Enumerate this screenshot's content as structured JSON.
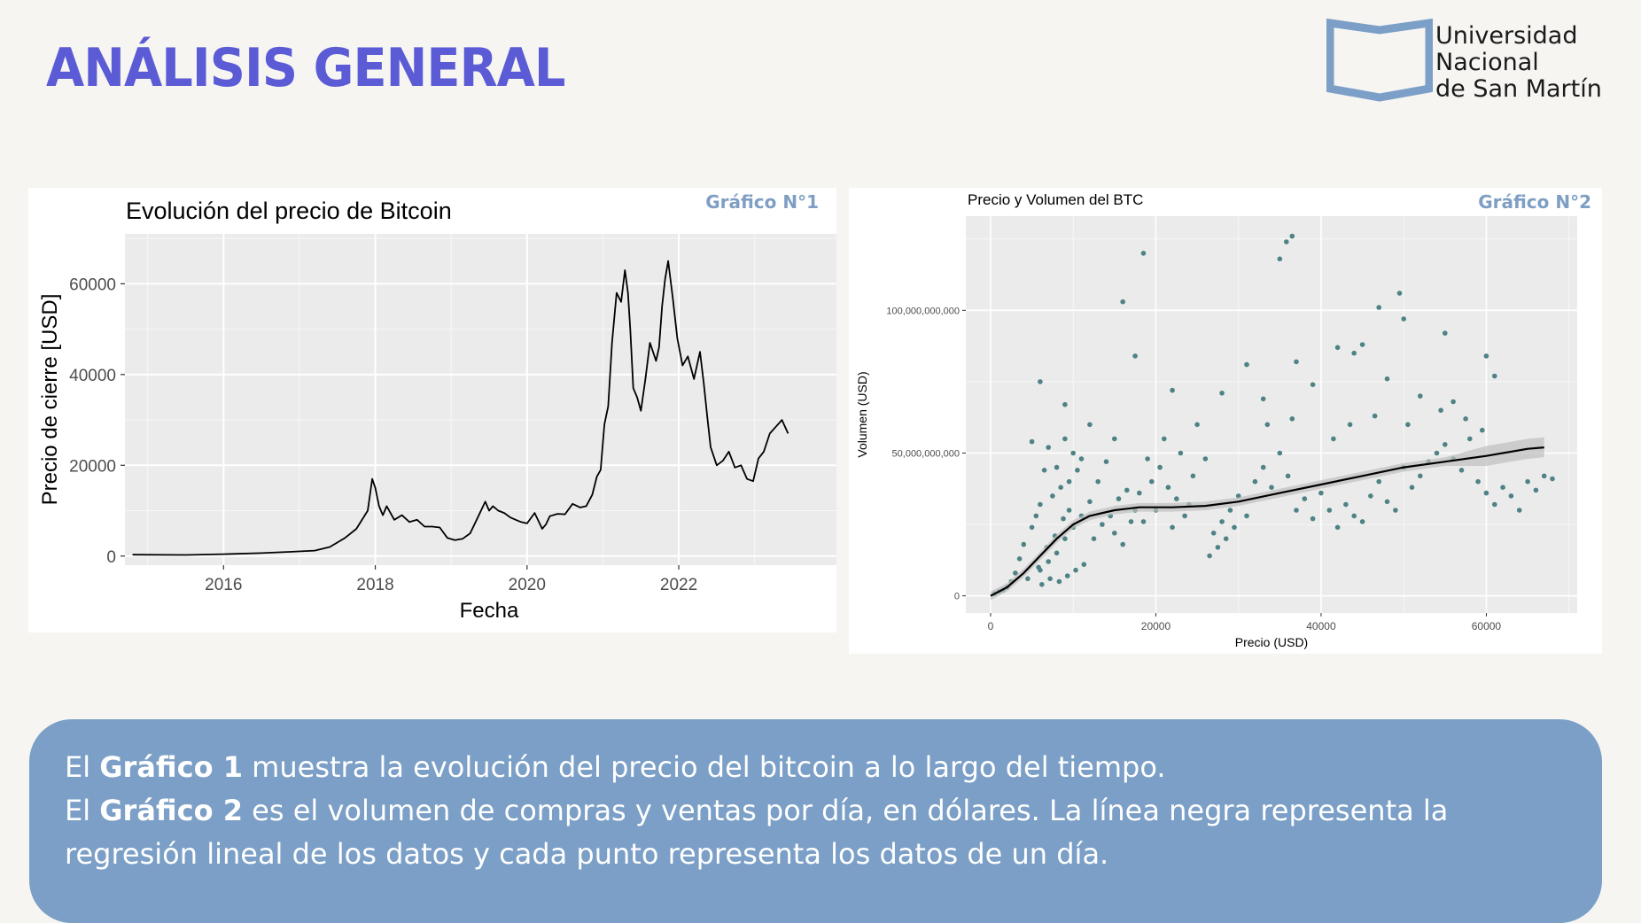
{
  "header": {
    "title": "ANÁLISIS GENERAL",
    "logo_lines": [
      "Universidad",
      "Nacional",
      "de San Martín"
    ]
  },
  "colors": {
    "title": "#5b5bd6",
    "grafico_label": "#7e9ec3",
    "scatter_points": "#4e8285",
    "textbox_bg": "#7b9fc6",
    "logo_mark": "#7b9fc6"
  },
  "chart_data": [
    {
      "id": "grafico-1",
      "type": "line",
      "badge": "Gráfico N°1",
      "title": "Evolución del precio de Bitcoin",
      "xlabel": "Fecha",
      "ylabel": "Precio de cierre [USD]",
      "xlim": [
        2014.7,
        2024.3
      ],
      "ylim": [
        -2000,
        71000
      ],
      "x_ticks": [
        2016,
        2018,
        2020,
        2022
      ],
      "y_ticks": [
        0,
        20000,
        40000,
        60000
      ],
      "grid": true,
      "x": [
        2014.8,
        2015.5,
        2016.0,
        2016.5,
        2016.9,
        2017.2,
        2017.4,
        2017.6,
        2017.75,
        2017.9,
        2017.96,
        2018.0,
        2018.05,
        2018.1,
        2018.15,
        2018.25,
        2018.35,
        2018.45,
        2018.55,
        2018.65,
        2018.75,
        2018.85,
        2018.95,
        2019.05,
        2019.15,
        2019.25,
        2019.35,
        2019.45,
        2019.5,
        2019.55,
        2019.62,
        2019.7,
        2019.78,
        2019.85,
        2019.92,
        2020.0,
        2020.1,
        2020.2,
        2020.25,
        2020.3,
        2020.4,
        2020.5,
        2020.6,
        2020.7,
        2020.78,
        2020.86,
        2020.92,
        2020.97,
        2021.02,
        2021.07,
        2021.12,
        2021.18,
        2021.24,
        2021.29,
        2021.33,
        2021.36,
        2021.4,
        2021.45,
        2021.5,
        2021.56,
        2021.62,
        2021.66,
        2021.7,
        2021.74,
        2021.78,
        2021.82,
        2021.86,
        2021.92,
        2021.98,
        2022.05,
        2022.12,
        2022.2,
        2022.28,
        2022.33,
        2022.38,
        2022.42,
        2022.5,
        2022.58,
        2022.66,
        2022.74,
        2022.82,
        2022.9,
        2022.98,
        2023.05,
        2023.12,
        2023.2,
        2023.28,
        2023.36,
        2023.44
      ],
      "y": [
        300,
        250,
        430,
        650,
        950,
        1200,
        2000,
        4000,
        6000,
        10000,
        17000,
        15000,
        11000,
        9000,
        11000,
        8000,
        9000,
        7500,
        8000,
        6500,
        6500,
        6300,
        4000,
        3500,
        3800,
        5000,
        8500,
        12000,
        10000,
        11000,
        10000,
        9500,
        8500,
        8000,
        7500,
        7200,
        9500,
        6000,
        7000,
        8800,
        9300,
        9200,
        11500,
        10700,
        11000,
        13500,
        17500,
        19000,
        29000,
        33000,
        47000,
        58000,
        56000,
        63000,
        58000,
        50000,
        37000,
        35000,
        32000,
        39000,
        47000,
        45000,
        43000,
        46000,
        55000,
        61000,
        65000,
        57000,
        48000,
        42000,
        44000,
        39000,
        45000,
        38000,
        30000,
        24000,
        20000,
        21000,
        23000,
        19500,
        20000,
        17000,
        16500,
        21500,
        23000,
        27000,
        28500,
        30000,
        27000
      ]
    },
    {
      "id": "grafico-2",
      "type": "scatter",
      "badge": "Gráfico N°2",
      "title": "Precio y Volumen del BTC",
      "xlabel": "Precio (USD)",
      "ylabel": "Volumen (USD)",
      "xlim": [
        -3000,
        71000
      ],
      "ylim": [
        -6000000000,
        133000000000
      ],
      "x_ticks": [
        0,
        20000,
        40000,
        60000
      ],
      "x_tick_labels": [
        "0",
        "20000",
        "40000",
        "60000"
      ],
      "y_ticks": [
        0,
        50000000000,
        100000000000
      ],
      "y_tick_labels": [
        "0",
        "50,000,000,000",
        "100,000,000,000"
      ],
      "grid": true,
      "trend": {
        "label": "regresión",
        "x": [
          0,
          2000,
          4000,
          6000,
          8000,
          10000,
          12000,
          15000,
          18000,
          22000,
          26000,
          30000,
          35000,
          40000,
          45000,
          50000,
          55000,
          60000,
          65000,
          67000
        ],
        "y": [
          0,
          3000000000,
          8000000000,
          14000000000,
          20000000000,
          25000000000,
          28000000000,
          30000000000,
          31000000000,
          31000000000,
          31500000000,
          33000000000,
          36000000000,
          39000000000,
          42000000000,
          45000000000,
          47000000000,
          49000000000,
          51500000000,
          52000000000
        ]
      },
      "points": [
        [
          36500,
          126000000000
        ],
        [
          35800,
          124000000000
        ],
        [
          35000,
          118000000000
        ],
        [
          18500,
          120000000000
        ],
        [
          16000,
          103000000000
        ],
        [
          47000,
          101000000000
        ],
        [
          49500,
          106000000000
        ],
        [
          50000,
          97000000000
        ],
        [
          55000,
          92000000000
        ],
        [
          45000,
          88000000000
        ],
        [
          42000,
          87000000000
        ],
        [
          44000,
          85000000000
        ],
        [
          60000,
          84000000000
        ],
        [
          61000,
          77000000000
        ],
        [
          17500,
          84000000000
        ],
        [
          31000,
          81000000000
        ],
        [
          37000,
          82000000000
        ],
        [
          6000,
          75000000000
        ],
        [
          9000,
          67000000000
        ],
        [
          22000,
          72000000000
        ],
        [
          12000,
          60000000000
        ],
        [
          15000,
          55000000000
        ],
        [
          48000,
          76000000000
        ],
        [
          52000,
          70000000000
        ],
        [
          56000,
          68000000000
        ],
        [
          39000,
          74000000000
        ],
        [
          28000,
          71000000000
        ],
        [
          33000,
          69000000000
        ],
        [
          5000,
          54000000000
        ],
        [
          7000,
          52000000000
        ],
        [
          9000,
          55000000000
        ],
        [
          10000,
          50000000000
        ],
        [
          11000,
          48000000000
        ],
        [
          8000,
          45000000000
        ],
        [
          6500,
          44000000000
        ],
        [
          10500,
          44000000000
        ],
        [
          9500,
          40000000000
        ],
        [
          8500,
          38000000000
        ],
        [
          7500,
          35000000000
        ],
        [
          6000,
          32000000000
        ],
        [
          5500,
          28000000000
        ],
        [
          5000,
          24000000000
        ],
        [
          4000,
          18000000000
        ],
        [
          3500,
          13000000000
        ],
        [
          3000,
          8000000000
        ],
        [
          2500,
          5000000000
        ],
        [
          2000,
          3000000000
        ],
        [
          1500,
          2000000000
        ],
        [
          1000,
          1500000000
        ],
        [
          500,
          800000000
        ],
        [
          4500,
          6000000000
        ],
        [
          6000,
          9000000000
        ],
        [
          7000,
          12000000000
        ],
        [
          8000,
          15000000000
        ],
        [
          9000,
          20000000000
        ],
        [
          10000,
          24000000000
        ],
        [
          11000,
          28000000000
        ],
        [
          12000,
          33000000000
        ],
        [
          9500,
          30000000000
        ],
        [
          8800,
          27000000000
        ],
        [
          7800,
          21000000000
        ],
        [
          6800,
          17000000000
        ],
        [
          5800,
          10000000000
        ],
        [
          6200,
          4000000000
        ],
        [
          7200,
          6000000000
        ],
        [
          8300,
          5000000000
        ],
        [
          9300,
          7000000000
        ],
        [
          10300,
          9000000000
        ],
        [
          11300,
          11000000000
        ],
        [
          12500,
          20000000000
        ],
        [
          13500,
          25000000000
        ],
        [
          14500,
          28000000000
        ],
        [
          15500,
          34000000000
        ],
        [
          16500,
          37000000000
        ],
        [
          17500,
          30000000000
        ],
        [
          18500,
          26000000000
        ],
        [
          19500,
          40000000000
        ],
        [
          20500,
          45000000000
        ],
        [
          21500,
          38000000000
        ],
        [
          22500,
          34000000000
        ],
        [
          23500,
          28000000000
        ],
        [
          24500,
          42000000000
        ],
        [
          19000,
          48000000000
        ],
        [
          21000,
          55000000000
        ],
        [
          23000,
          50000000000
        ],
        [
          18000,
          36000000000
        ],
        [
          20000,
          30000000000
        ],
        [
          22000,
          24000000000
        ],
        [
          24000,
          32000000000
        ],
        [
          15000,
          22000000000
        ],
        [
          16000,
          18000000000
        ],
        [
          17000,
          26000000000
        ],
        [
          26500,
          14000000000
        ],
        [
          27500,
          17000000000
        ],
        [
          28500,
          20000000000
        ],
        [
          29500,
          24000000000
        ],
        [
          27000,
          22000000000
        ],
        [
          28000,
          26000000000
        ],
        [
          29000,
          30000000000
        ],
        [
          30000,
          35000000000
        ],
        [
          31000,
          28000000000
        ],
        [
          32000,
          40000000000
        ],
        [
          33000,
          45000000000
        ],
        [
          34000,
          38000000000
        ],
        [
          35000,
          50000000000
        ],
        [
          36000,
          42000000000
        ],
        [
          37000,
          30000000000
        ],
        [
          38000,
          34000000000
        ],
        [
          39000,
          27000000000
        ],
        [
          40000,
          36000000000
        ],
        [
          41000,
          30000000000
        ],
        [
          42000,
          24000000000
        ],
        [
          43000,
          32000000000
        ],
        [
          44000,
          28000000000
        ],
        [
          45000,
          26000000000
        ],
        [
          46000,
          35000000000
        ],
        [
          47000,
          40000000000
        ],
        [
          48000,
          33000000000
        ],
        [
          49000,
          30000000000
        ],
        [
          50000,
          45000000000
        ],
        [
          51000,
          38000000000
        ],
        [
          52000,
          42000000000
        ],
        [
          53000,
          47000000000
        ],
        [
          54000,
          50000000000
        ],
        [
          55000,
          53000000000
        ],
        [
          56000,
          48000000000
        ],
        [
          57000,
          44000000000
        ],
        [
          58000,
          55000000000
        ],
        [
          59000,
          40000000000
        ],
        [
          60000,
          36000000000
        ],
        [
          61000,
          32000000000
        ],
        [
          62000,
          38000000000
        ],
        [
          63000,
          35000000000
        ],
        [
          64000,
          30000000000
        ],
        [
          65000,
          40000000000
        ],
        [
          66000,
          37000000000
        ],
        [
          67000,
          42000000000
        ],
        [
          68000,
          41000000000
        ],
        [
          25000,
          60000000000
        ],
        [
          26000,
          48000000000
        ],
        [
          14000,
          47000000000
        ],
        [
          13000,
          40000000000
        ],
        [
          33500,
          60000000000
        ],
        [
          36500,
          62000000000
        ],
        [
          41500,
          55000000000
        ],
        [
          43500,
          60000000000
        ],
        [
          46500,
          63000000000
        ],
        [
          50500,
          60000000000
        ],
        [
          54500,
          65000000000
        ],
        [
          57500,
          62000000000
        ],
        [
          59500,
          58000000000
        ]
      ]
    }
  ],
  "description": {
    "line1": {
      "pre": "El ",
      "bold": "Gráfico 1",
      "post": " muestra la evolución del precio del bitcoin a lo largo del tiempo."
    },
    "line2": {
      "pre": "El ",
      "bold": "Gráfico 2",
      "post": " es el volumen de compras y ventas por día, en dólares. La línea negra representa la regresión lineal de los datos y cada punto representa los datos de un día."
    }
  }
}
